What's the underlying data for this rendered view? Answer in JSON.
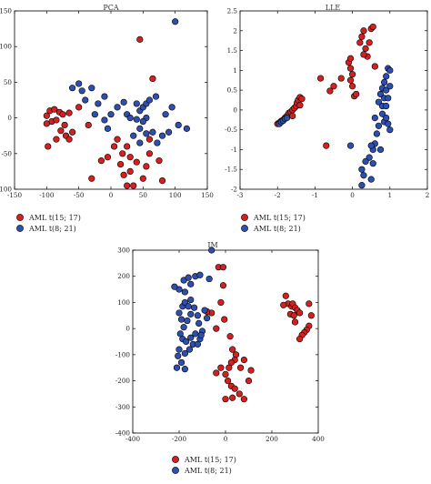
{
  "colors": {
    "aml_15_17": "#d62020",
    "aml_8_21": "#2e4fb0"
  },
  "legend": {
    "entry_1": {
      "label": "AML t(15; 17)"
    },
    "entry_2": {
      "label": "AML t(8; 21)"
    }
  },
  "chart_data": [
    {
      "type": "scatter",
      "title": "PCA",
      "xlim": [
        -150,
        150
      ],
      "ylim": [
        -100,
        150
      ],
      "xticks": [
        -150,
        -100,
        -50,
        0,
        50,
        100,
        150
      ],
      "yticks": [
        -100,
        -50,
        0,
        50,
        100,
        150
      ],
      "grid": false,
      "legend_position": "below-left",
      "series": [
        {
          "name": "AML t(15; 17)",
          "color": "#d62020",
          "points": [
            [
              -100,
              3
            ],
            [
              -95,
              10
            ],
            [
              -88,
              12
            ],
            [
              -80,
              8
            ],
            [
              -92,
              -5
            ],
            [
              -100,
              -8
            ],
            [
              -85,
              -3
            ],
            [
              -75,
              5
            ],
            [
              -72,
              -10
            ],
            [
              -78,
              -18
            ],
            [
              -70,
              -25
            ],
            [
              -65,
              -30
            ],
            [
              -60,
              -20
            ],
            [
              -85,
              -30
            ],
            [
              -98,
              -40
            ],
            [
              -65,
              7
            ],
            [
              -50,
              15
            ],
            [
              -35,
              -10
            ],
            [
              -30,
              -85
            ],
            [
              -15,
              -60
            ],
            [
              -5,
              -55
            ],
            [
              5,
              -40
            ],
            [
              10,
              -30
            ],
            [
              18,
              -50
            ],
            [
              25,
              -40
            ],
            [
              30,
              -55
            ],
            [
              40,
              -62
            ],
            [
              55,
              -68
            ],
            [
              15,
              -65
            ],
            [
              20,
              -80
            ],
            [
              30,
              -75
            ],
            [
              35,
              -95
            ],
            [
              50,
              -85
            ],
            [
              60,
              -50
            ],
            [
              75,
              -60
            ],
            [
              80,
              -88
            ],
            [
              25,
              -95
            ],
            [
              45,
              110
            ],
            [
              65,
              55
            ],
            [
              60,
              -30
            ]
          ]
        },
        {
          "name": "AML t(8; 21)",
          "color": "#2e4fb0",
          "points": [
            [
              -60,
              42
            ],
            [
              -50,
              48
            ],
            [
              -45,
              38
            ],
            [
              -40,
              25
            ],
            [
              -30,
              42
            ],
            [
              -20,
              20
            ],
            [
              -10,
              30
            ],
            [
              -25,
              5
            ],
            [
              -10,
              -3
            ],
            [
              -5,
              -15
            ],
            [
              0,
              5
            ],
            [
              10,
              15
            ],
            [
              20,
              22
            ],
            [
              25,
              5
            ],
            [
              30,
              0
            ],
            [
              40,
              -2
            ],
            [
              45,
              10
            ],
            [
              50,
              15
            ],
            [
              55,
              20
            ],
            [
              60,
              25
            ],
            [
              55,
              0
            ],
            [
              45,
              -15
            ],
            [
              55,
              -22
            ],
            [
              65,
              -20
            ],
            [
              72,
              -35
            ],
            [
              80,
              -25
            ],
            [
              90,
              -20
            ],
            [
              85,
              5
            ],
            [
              95,
              15
            ],
            [
              105,
              -10
            ],
            [
              118,
              -15
            ],
            [
              70,
              30
            ],
            [
              40,
              20
            ],
            [
              50,
              -5
            ],
            [
              35,
              -25
            ],
            [
              45,
              -35
            ],
            [
              100,
              135
            ]
          ]
        }
      ]
    },
    {
      "type": "scatter",
      "title": "LLE",
      "xlim": [
        -3,
        2
      ],
      "ylim": [
        -2,
        2.5
      ],
      "xticks": [
        -3,
        -2,
        -1,
        0,
        1,
        2
      ],
      "yticks": [
        -2,
        -1.5,
        -1,
        -0.5,
        0,
        0.5,
        1,
        1.5,
        2,
        2.5
      ],
      "grid": false,
      "legend_position": "below-left",
      "series": [
        {
          "name": "AML t(15; 17)",
          "color": "#d62020",
          "points": [
            [
              -2.0,
              -0.35
            ],
            [
              -1.95,
              -0.32
            ],
            [
              -1.9,
              -0.28
            ],
            [
              -1.85,
              -0.25
            ],
            [
              -1.8,
              -0.2
            ],
            [
              -1.75,
              -0.15
            ],
            [
              -1.7,
              -0.08
            ],
            [
              -1.65,
              -0.05
            ],
            [
              -1.6,
              0.0
            ],
            [
              -1.55,
              0.05
            ],
            [
              -1.5,
              0.1
            ],
            [
              -1.48,
              0.18
            ],
            [
              -1.45,
              0.25
            ],
            [
              -1.4,
              0.32
            ],
            [
              -1.35,
              0.28
            ],
            [
              -1.4,
              0.12
            ],
            [
              -1.6,
              -0.15
            ],
            [
              -0.85,
              0.8
            ],
            [
              -0.6,
              0.48
            ],
            [
              -0.5,
              0.6
            ],
            [
              -0.3,
              0.8
            ],
            [
              0.05,
              0.35
            ],
            [
              0.1,
              0.4
            ],
            [
              0.0,
              0.6
            ],
            [
              -0.05,
              0.75
            ],
            [
              0.0,
              0.9
            ],
            [
              -0.05,
              1.05
            ],
            [
              -0.1,
              1.2
            ],
            [
              -0.05,
              1.3
            ],
            [
              0.2,
              1.7
            ],
            [
              0.25,
              1.85
            ],
            [
              0.3,
              2.0
            ],
            [
              0.35,
              1.55
            ],
            [
              0.4,
              1.35
            ],
            [
              0.45,
              1.7
            ],
            [
              0.5,
              2.05
            ],
            [
              0.55,
              2.1
            ],
            [
              0.3,
              1.4
            ],
            [
              -0.7,
              -0.9
            ],
            [
              0.6,
              1.1
            ]
          ]
        },
        {
          "name": "AML t(8; 21)",
          "color": "#2e4fb0",
          "points": [
            [
              -1.95,
              -0.35
            ],
            [
              -1.9,
              -0.3
            ],
            [
              -1.85,
              -0.27
            ],
            [
              -1.8,
              -0.22
            ],
            [
              -1.75,
              -0.2
            ],
            [
              0.7,
              0.2
            ],
            [
              0.75,
              0.4
            ],
            [
              0.8,
              0.55
            ],
            [
              0.85,
              0.7
            ],
            [
              0.9,
              0.85
            ],
            [
              0.95,
              1.05
            ],
            [
              1.0,
              1.0
            ],
            [
              0.9,
              0.5
            ],
            [
              0.85,
              0.3
            ],
            [
              0.8,
              0.1
            ],
            [
              0.8,
              -0.1
            ],
            [
              0.85,
              -0.3
            ],
            [
              0.9,
              -0.2
            ],
            [
              0.95,
              -0.35
            ],
            [
              1.0,
              -0.5
            ],
            [
              0.9,
              0.1
            ],
            [
              0.95,
              0.3
            ],
            [
              1.0,
              0.6
            ],
            [
              0.7,
              -0.4
            ],
            [
              0.65,
              -0.6
            ],
            [
              0.6,
              -0.85
            ],
            [
              0.55,
              -1.0
            ],
            [
              0.5,
              -0.9
            ],
            [
              0.45,
              -1.2
            ],
            [
              0.35,
              -1.3
            ],
            [
              0.25,
              -1.5
            ],
            [
              0.3,
              -1.65
            ],
            [
              0.55,
              -1.35
            ],
            [
              0.5,
              -1.75
            ],
            [
              0.25,
              -1.9
            ],
            [
              0.75,
              -1.0
            ],
            [
              -0.05,
              -0.9
            ],
            [
              0.6,
              -0.2
            ]
          ]
        }
      ]
    },
    {
      "type": "scatter",
      "title": "IM",
      "xlim": [
        -400,
        400
      ],
      "ylim": [
        -400,
        300
      ],
      "xticks": [
        -400,
        -200,
        0,
        200,
        400
      ],
      "yticks": [
        -400,
        -300,
        -200,
        -100,
        0,
        100,
        200,
        300
      ],
      "grid": false,
      "legend_position": "below-center",
      "series": [
        {
          "name": "AML t(15; 17)",
          "color": "#d62020",
          "points": [
            [
              -10,
              165
            ],
            [
              -30,
              235
            ],
            [
              -20,
              100
            ],
            [
              -5,
              35
            ],
            [
              -40,
              0
            ],
            [
              -60,
              60
            ],
            [
              -80,
              65
            ],
            [
              20,
              -30
            ],
            [
              30,
              -80
            ],
            [
              45,
              -100
            ],
            [
              40,
              -120
            ],
            [
              25,
              -130
            ],
            [
              15,
              -150
            ],
            [
              0,
              -175
            ],
            [
              -20,
              -150
            ],
            [
              -40,
              -170
            ],
            [
              10,
              -200
            ],
            [
              25,
              -220
            ],
            [
              40,
              -230
            ],
            [
              60,
              -250
            ],
            [
              80,
              -270
            ],
            [
              100,
              -200
            ],
            [
              110,
              -160
            ],
            [
              80,
              -120
            ],
            [
              65,
              -150
            ],
            [
              30,
              -265
            ],
            [
              0,
              -270
            ],
            [
              260,
              125
            ],
            [
              270,
              95
            ],
            [
              285,
              85
            ],
            [
              290,
              95
            ],
            [
              300,
              80
            ],
            [
              280,
              55
            ],
            [
              295,
              50
            ],
            [
              310,
              70
            ],
            [
              320,
              60
            ],
            [
              360,
              95
            ],
            [
              370,
              50
            ],
            [
              360,
              10
            ],
            [
              350,
              -5
            ],
            [
              340,
              -15
            ],
            [
              330,
              -25
            ],
            [
              300,
              25
            ],
            [
              250,
              90
            ],
            [
              -10,
              235
            ],
            [
              320,
              -40
            ]
          ]
        },
        {
          "name": "AML t(8; 21)",
          "color": "#2e4fb0",
          "points": [
            [
              -190,
              35
            ],
            [
              -200,
              60
            ],
            [
              -185,
              85
            ],
            [
              -175,
              100
            ],
            [
              -160,
              85
            ],
            [
              -150,
              55
            ],
            [
              -165,
              30
            ],
            [
              -180,
              5
            ],
            [
              -195,
              -20
            ],
            [
              -185,
              -40
            ],
            [
              -170,
              -50
            ],
            [
              -150,
              -35
            ],
            [
              -130,
              -20
            ],
            [
              -140,
              -60
            ],
            [
              -155,
              -80
            ],
            [
              -175,
              -95
            ],
            [
              -200,
              -80
            ],
            [
              -205,
              -105
            ],
            [
              -190,
              -130
            ],
            [
              -175,
              -155
            ],
            [
              -210,
              -150
            ],
            [
              -120,
              -60
            ],
            [
              -110,
              -40
            ],
            [
              -100,
              -10
            ],
            [
              -115,
              20
            ],
            [
              -120,
              50
            ],
            [
              -135,
              80
            ],
            [
              -150,
              110
            ],
            [
              -175,
              140
            ],
            [
              -200,
              150
            ],
            [
              -220,
              160
            ],
            [
              -180,
              185
            ],
            [
              -160,
              195
            ],
            [
              -130,
              200
            ],
            [
              -110,
              205
            ],
            [
              -150,
              170
            ],
            [
              -90,
              70
            ],
            [
              -80,
              40
            ],
            [
              -105,
              -25
            ],
            [
              -70,
              190
            ],
            [
              -60,
              300
            ]
          ]
        }
      ]
    }
  ]
}
